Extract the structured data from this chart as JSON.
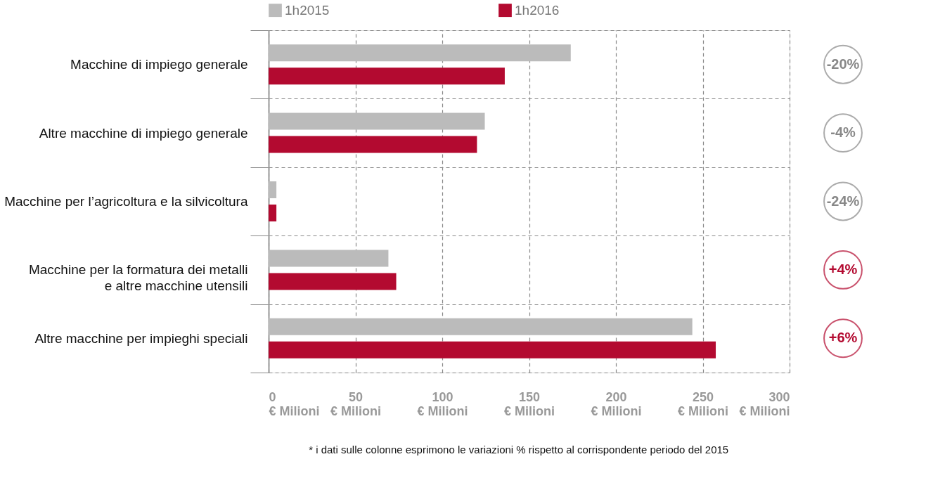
{
  "chart_data": {
    "type": "bar",
    "orientation": "horizontal",
    "categories": [
      "Macchine di impiego generale",
      "Altre macchine di impiego generale",
      "Macchine per l’agricoltura e la silvicoltura",
      "Macchine per la formatura dei metalli\ne altre macchine utensili",
      "Altre macchine per impieghi speciali"
    ],
    "series": [
      {
        "name": "1h2015",
        "color": "#bbbbbb",
        "values": [
          174,
          124.5,
          4.5,
          69,
          244
        ]
      },
      {
        "name": "1h2016",
        "color": "#b30a30",
        "values": [
          136,
          120,
          4.5,
          73.5,
          257.5
        ]
      }
    ],
    "xlim": [
      0,
      300
    ],
    "xticks": [
      {
        "value": 0,
        "label": "0\n€ Milioni"
      },
      {
        "value": 50,
        "label": "50\n€ Milioni"
      },
      {
        "value": 100,
        "label": "100\n€ Milioni"
      },
      {
        "value": 150,
        "label": "150\n€ Milioni"
      },
      {
        "value": 200,
        "label": "200\n€ Milioni"
      },
      {
        "value": 250,
        "label": "250\n€ Milioni"
      },
      {
        "value": 300,
        "label": "300\n€ Milioni"
      }
    ],
    "grid": true,
    "legend": "top",
    "annotations": [
      "-20%",
      "-4%",
      "-24%",
      "+4%",
      "+6%",
      "* i dati sulle colonne esprimono le variazioni % rispetto al corrispondente periodo del 2015"
    ]
  }
}
